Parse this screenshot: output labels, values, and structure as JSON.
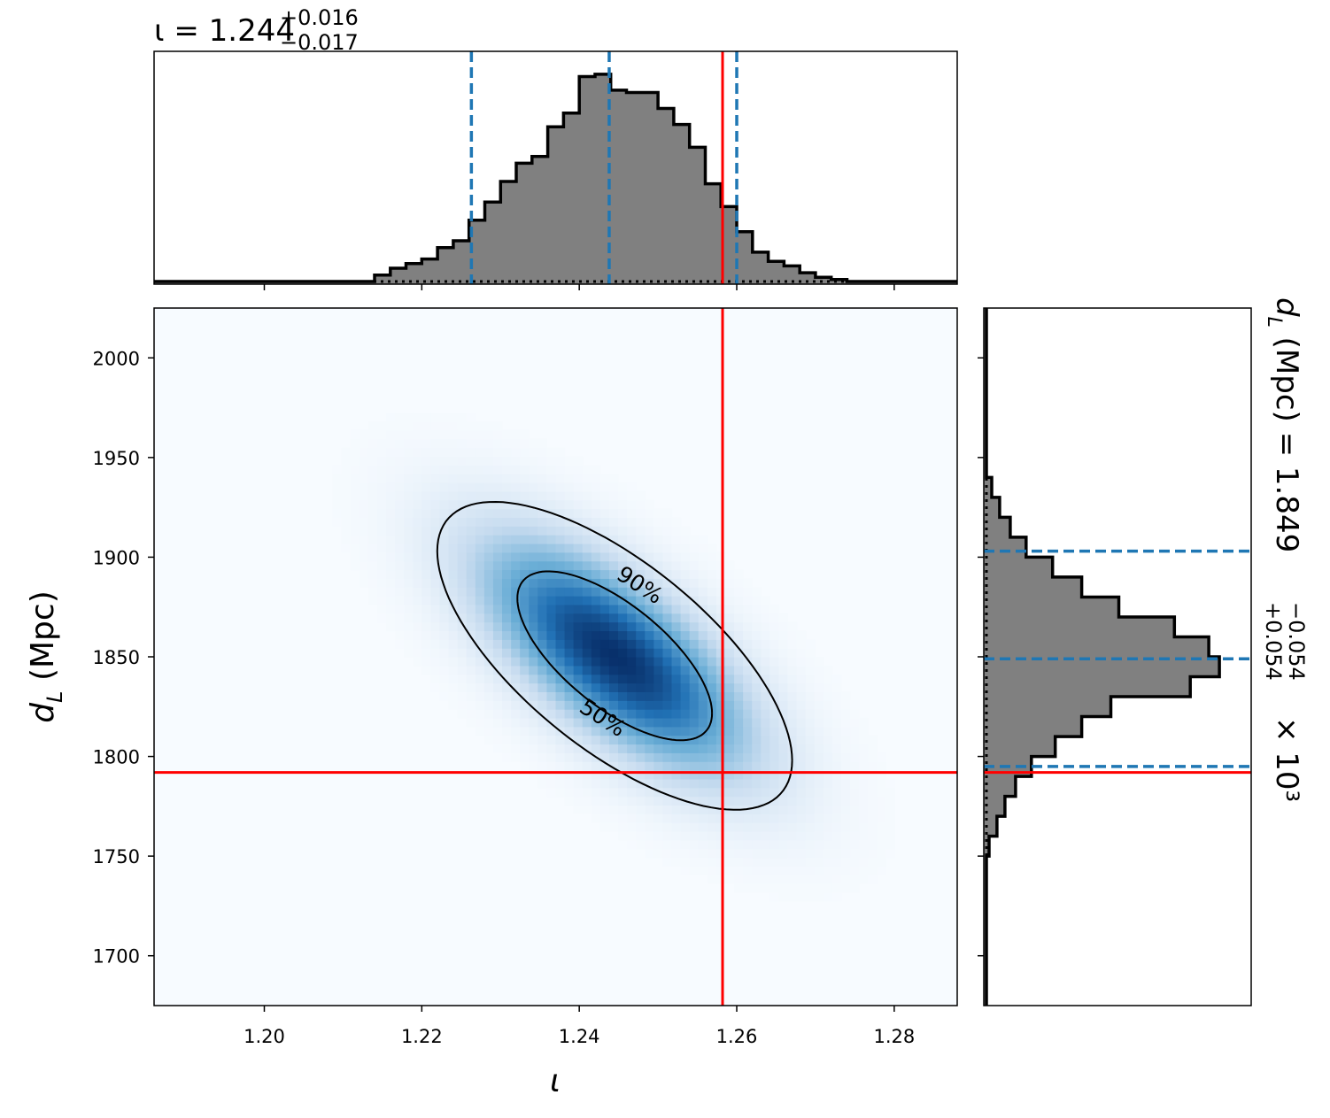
{
  "chart_data": {
    "type": "corner",
    "parameters": [
      {
        "symbol": "ι",
        "label": "ι",
        "summary": {
          "median": 1.244,
          "plus": 0.016,
          "minus": 0.017,
          "scale": ""
        },
        "title_value": "1.244",
        "title_plus": "+0.016",
        "title_minus": "−0.017",
        "range": [
          1.186,
          1.288
        ],
        "ticks": [
          1.2,
          1.22,
          1.24,
          1.26,
          1.28
        ],
        "tick_labels": [
          "1.20",
          "1.22",
          "1.24",
          "1.26",
          "1.28"
        ],
        "quantiles": [
          1.2263,
          1.2438,
          1.26
        ],
        "true_value": 1.2582,
        "histogram": {
          "bin_width": 0.002,
          "bins": [
            [
              1.215,
              0.04
            ],
            [
              1.217,
              0.07
            ],
            [
              1.219,
              0.09
            ],
            [
              1.221,
              0.11
            ],
            [
              1.223,
              0.16
            ],
            [
              1.225,
              0.19
            ],
            [
              1.227,
              0.28
            ],
            [
              1.229,
              0.36
            ],
            [
              1.231,
              0.45
            ],
            [
              1.233,
              0.53
            ],
            [
              1.235,
              0.56
            ],
            [
              1.237,
              0.69
            ],
            [
              1.239,
              0.75
            ],
            [
              1.241,
              0.91
            ],
            [
              1.243,
              0.92
            ],
            [
              1.245,
              0.85
            ],
            [
              1.247,
              0.84
            ],
            [
              1.249,
              0.84
            ],
            [
              1.251,
              0.77
            ],
            [
              1.253,
              0.7
            ],
            [
              1.255,
              0.6
            ],
            [
              1.257,
              0.44
            ],
            [
              1.259,
              0.34
            ],
            [
              1.261,
              0.23
            ],
            [
              1.263,
              0.14
            ],
            [
              1.265,
              0.1
            ],
            [
              1.267,
              0.08
            ],
            [
              1.269,
              0.05
            ],
            [
              1.271,
              0.03
            ],
            [
              1.273,
              0.02
            ]
          ]
        }
      },
      {
        "symbol": "d_L",
        "label": "(Mpc)",
        "summary": {
          "median": 1.849,
          "plus": 0.054,
          "minus": 0.054,
          "scale": "× 10³"
        },
        "title_value": "1.849",
        "title_plus": "+0.054",
        "title_minus": "−0.054",
        "range": [
          1675,
          2025
        ],
        "ticks": [
          1700,
          1750,
          1800,
          1850,
          1900,
          1950,
          2000
        ],
        "tick_labels": [
          "1700",
          "1750",
          "1800",
          "1850",
          "1900",
          "1950",
          "2000"
        ],
        "quantiles": [
          1795,
          1849,
          1903
        ],
        "true_value": 1792,
        "histogram": {
          "bin_width": 10,
          "bins": [
            [
              1755,
              0.02
            ],
            [
              1765,
              0.05
            ],
            [
              1775,
              0.08
            ],
            [
              1785,
              0.12
            ],
            [
              1795,
              0.18
            ],
            [
              1805,
              0.27
            ],
            [
              1815,
              0.37
            ],
            [
              1825,
              0.48
            ],
            [
              1835,
              0.78
            ],
            [
              1845,
              0.89
            ],
            [
              1855,
              0.85
            ],
            [
              1865,
              0.72
            ],
            [
              1875,
              0.51
            ],
            [
              1885,
              0.37
            ],
            [
              1895,
              0.26
            ],
            [
              1905,
              0.16
            ],
            [
              1915,
              0.1
            ],
            [
              1925,
              0.06
            ],
            [
              1935,
              0.03
            ],
            [
              1945,
              0.01
            ]
          ]
        }
      }
    ],
    "joint_density": {
      "center": [
        1.2445,
        1.8505
      ],
      "sigma_x": 0.0105,
      "sigma_y": 0.036,
      "correlation": -0.68,
      "colormap": "Blues"
    },
    "contours": [
      {
        "label": "50%",
        "level": 0.5
      },
      {
        "label": "90%",
        "level": 0.9
      }
    ],
    "colors": {
      "histogram_fill": "#808080",
      "histogram_edge": "#000000",
      "quantile_line": "#1f77b4",
      "truth_line": "#ff0000",
      "density_low": "#f7fbff",
      "density_high": "#08306b"
    }
  }
}
